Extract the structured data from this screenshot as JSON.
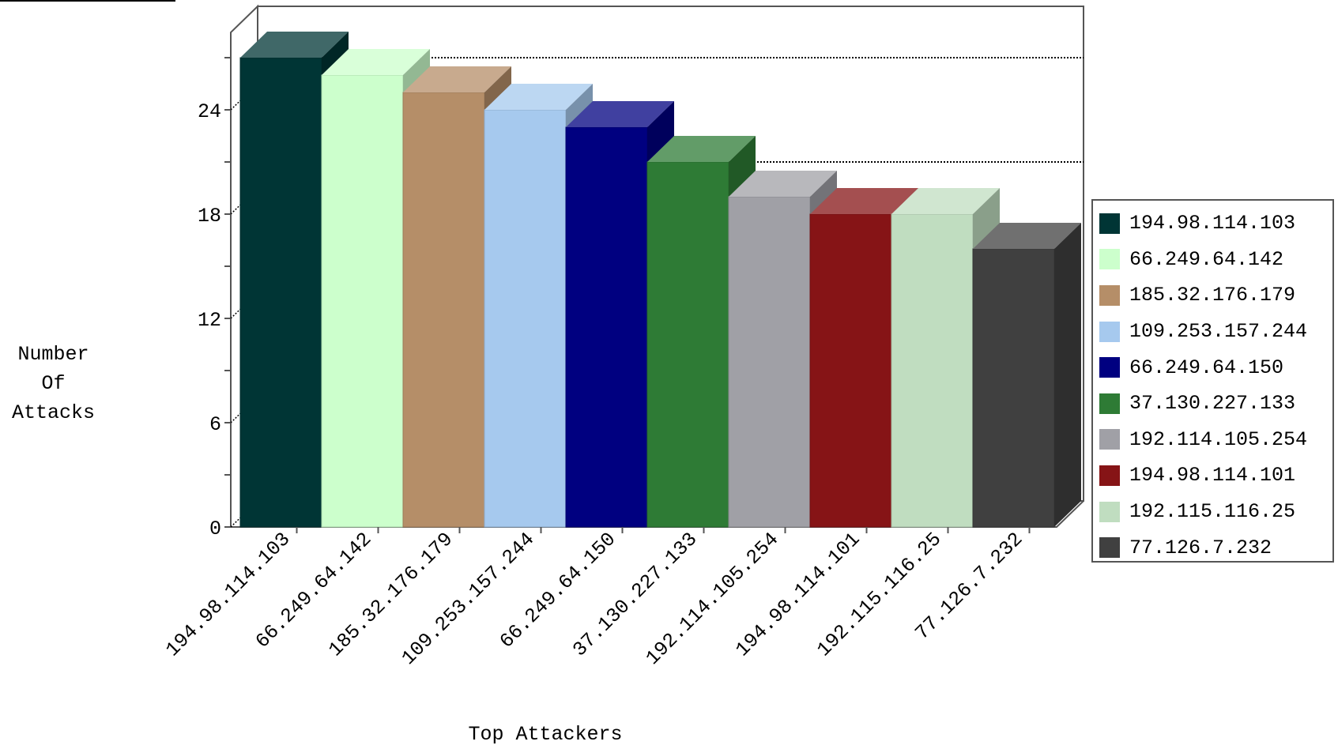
{
  "chart_data": {
    "type": "bar",
    "title": "",
    "xlabel": "Top Attackers",
    "ylabel": "Number\nOf\nAttacks",
    "ylim": [
      0,
      27
    ],
    "yticks": [
      0,
      6,
      12,
      18,
      24
    ],
    "categories": [
      "194.98.114.103",
      "66.249.64.142",
      "185.32.176.179",
      "109.253.157.244",
      "66.249.64.150",
      "37.130.227.133",
      "192.114.105.254",
      "194.98.114.101",
      "192.115.116.25",
      "77.126.7.232"
    ],
    "values": [
      27,
      26,
      25,
      24,
      23,
      21,
      19,
      18,
      18,
      16
    ],
    "colors": [
      "#003535",
      "#ccffcc",
      "#b58e68",
      "#a6c9ee",
      "#000080",
      "#2e7b35",
      "#a0a0a6",
      "#861416",
      "#c0ddc0",
      "#404040"
    ],
    "reference_lines": [
      25.5,
      19.5
    ],
    "legend_position": "right",
    "style": "3d"
  }
}
